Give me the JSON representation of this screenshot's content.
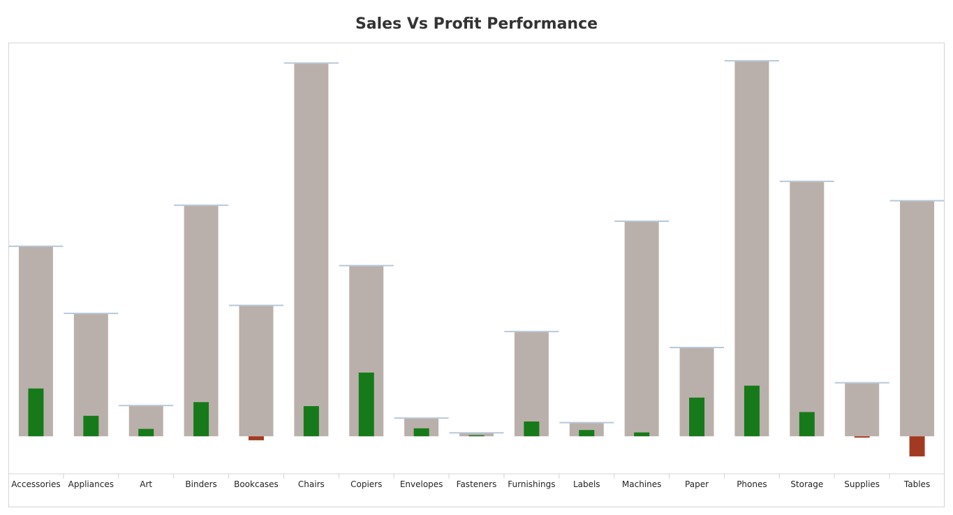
{
  "chart_data": {
    "type": "bar",
    "title": "Sales Vs Profit Performance",
    "xlabel": "",
    "ylabel": "",
    "categories": [
      "Accessories",
      "Appliances",
      "Art",
      "Binders",
      "Bookcases",
      "Chairs",
      "Copiers",
      "Envelopes",
      "Fasteners",
      "Furnishings",
      "Labels",
      "Machines",
      "Paper",
      "Phones",
      "Storage",
      "Supplies",
      "Tables"
    ],
    "series": [
      {
        "values": [
          167000,
          108000,
          27000,
          203000,
          115000,
          328000,
          150000,
          16000,
          3000,
          92000,
          12000,
          189000,
          78000,
          330000,
          224000,
          47000,
          207000
        ],
        "color": "#bab0ab"
      },
      {
        "values": [
          42000,
          18000,
          6500,
          30000,
          -3500,
          26500,
          56000,
          7000,
          950,
          13000,
          5500,
          3400,
          34000,
          44500,
          21300,
          -1200,
          -17700
        ],
        "positive_color": "#177a1a",
        "negative_color": "#a23a22"
      }
    ],
    "ylim": [
      -33000,
      346000
    ],
    "grid": false,
    "legend": "none",
    "cap_color": "#b8c8d8"
  }
}
